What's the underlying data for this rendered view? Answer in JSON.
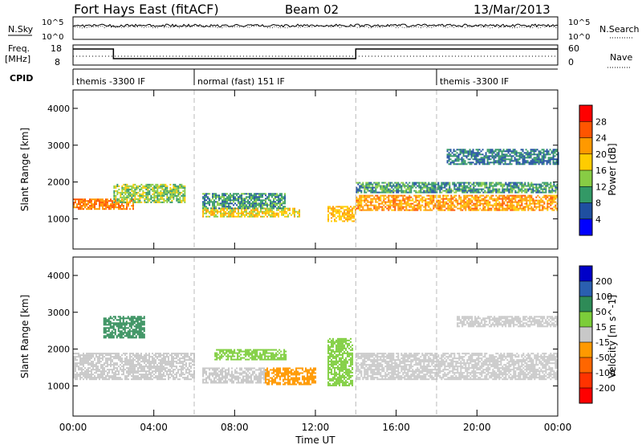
{
  "header": {
    "title": "Fort Hays East (fitACF)",
    "beam": "Beam 02",
    "date": "13/Mar/2013"
  },
  "side_labels": {
    "nsky": "N.Sky",
    "nsearch": "N.Search",
    "freq_line1": "Freq.",
    "freq_line2": "[MHz]",
    "nave": "Nave",
    "cpid": "CPID"
  },
  "noise_axis": {
    "top": "10^5",
    "bottom": "10^0"
  },
  "freq_axis": {
    "left_top": "18",
    "left_bottom": "8",
    "right_top": "60",
    "right_bottom": "0"
  },
  "cpid_segments": [
    {
      "label": "themis -3300 IF",
      "start_hour": 0,
      "end_hour": 6
    },
    {
      "label": "normal (fast) 151 IF",
      "start_hour": 6,
      "end_hour": 18
    },
    {
      "label": "themis -3300 IF",
      "start_hour": 18,
      "end_hour": 24
    }
  ],
  "x_axis": {
    "label": "Time UT",
    "ticks": [
      "00:00",
      "04:00",
      "08:00",
      "12:00",
      "16:00",
      "20:00",
      "00:00"
    ]
  },
  "power_colorbar": {
    "label": "Power [dB]",
    "ticks": [
      "28",
      "24",
      "20",
      "16",
      "12",
      "8",
      "4"
    ],
    "colors": [
      "#ff0000",
      "#ff5500",
      "#ff9900",
      "#ffcc00",
      "#88cc44",
      "#339966",
      "#1f4fa0",
      "#0000ff"
    ]
  },
  "velocity_colorbar": {
    "label": "Velocity [m s^-1]",
    "ticks": [
      "200",
      "100",
      "50",
      "15",
      "-15",
      "-50",
      "-100",
      "-200"
    ],
    "colors": [
      "#0000c8",
      "#2a5fb0",
      "#2e8b57",
      "#7ccd3a",
      "#c8c8c8",
      "#ff9900",
      "#ff6600",
      "#ff3300",
      "#ff0000"
    ]
  },
  "chart_data": [
    {
      "type": "heatmap",
      "title": "Power",
      "xlabel": "",
      "ylabel": "Slant Range [km]",
      "xlim_hours": [
        0,
        24
      ],
      "ylim_km": [
        180,
        4500
      ],
      "yticks": [
        1000,
        2000,
        3000,
        4000
      ],
      "echo_bands": [
        {
          "start_hour": 0.0,
          "end_hour": 3.0,
          "range_km": [
            1250,
            1550
          ],
          "power_db": 24
        },
        {
          "start_hour": 2.0,
          "end_hour": 5.5,
          "range_km": [
            1450,
            1950
          ],
          "power_db": 14
        },
        {
          "start_hour": 6.4,
          "end_hour": 11.2,
          "range_km": [
            1050,
            1300
          ],
          "power_db": 18
        },
        {
          "start_hour": 6.4,
          "end_hour": 10.5,
          "range_km": [
            1300,
            1700
          ],
          "power_db": 10
        },
        {
          "start_hour": 12.6,
          "end_hour": 14.0,
          "range_km": [
            950,
            1350
          ],
          "power_db": 20
        },
        {
          "start_hour": 14.0,
          "end_hour": 24.0,
          "range_km": [
            1250,
            1650
          ],
          "power_db": 22
        },
        {
          "start_hour": 14.0,
          "end_hour": 24.0,
          "range_km": [
            1700,
            2000
          ],
          "power_db": 10
        },
        {
          "start_hour": 18.5,
          "end_hour": 24.0,
          "range_km": [
            2500,
            2900
          ],
          "power_db": 8
        }
      ]
    },
    {
      "type": "heatmap",
      "title": "Velocity",
      "xlabel": "Time UT",
      "ylabel": "Slant Range [km]",
      "xlim_hours": [
        0,
        24
      ],
      "ylim_km": [
        180,
        4500
      ],
      "yticks": [
        1000,
        2000,
        3000,
        4000
      ],
      "echo_bands": [
        {
          "start_hour": 0.0,
          "end_hour": 6.0,
          "range_km": [
            1200,
            1900
          ],
          "velocity_ms": 0
        },
        {
          "start_hour": 1.5,
          "end_hour": 3.5,
          "range_km": [
            2300,
            2900
          ],
          "velocity_ms": 80
        },
        {
          "start_hour": 6.4,
          "end_hour": 9.5,
          "range_km": [
            1100,
            1500
          ],
          "velocity_ms": 0
        },
        {
          "start_hour": 7.0,
          "end_hour": 10.5,
          "range_km": [
            1700,
            2000
          ],
          "velocity_ms": 30
        },
        {
          "start_hour": 9.5,
          "end_hour": 12.0,
          "range_km": [
            1050,
            1500
          ],
          "velocity_ms": -40
        },
        {
          "start_hour": 12.6,
          "end_hour": 13.8,
          "range_km": [
            1000,
            2300
          ],
          "velocity_ms": 30
        },
        {
          "start_hour": 14.0,
          "end_hour": 24.0,
          "range_km": [
            1200,
            1900
          ],
          "velocity_ms": 0
        },
        {
          "start_hour": 19.0,
          "end_hour": 24.0,
          "range_km": [
            2600,
            2900
          ],
          "velocity_ms": 0
        }
      ]
    }
  ]
}
